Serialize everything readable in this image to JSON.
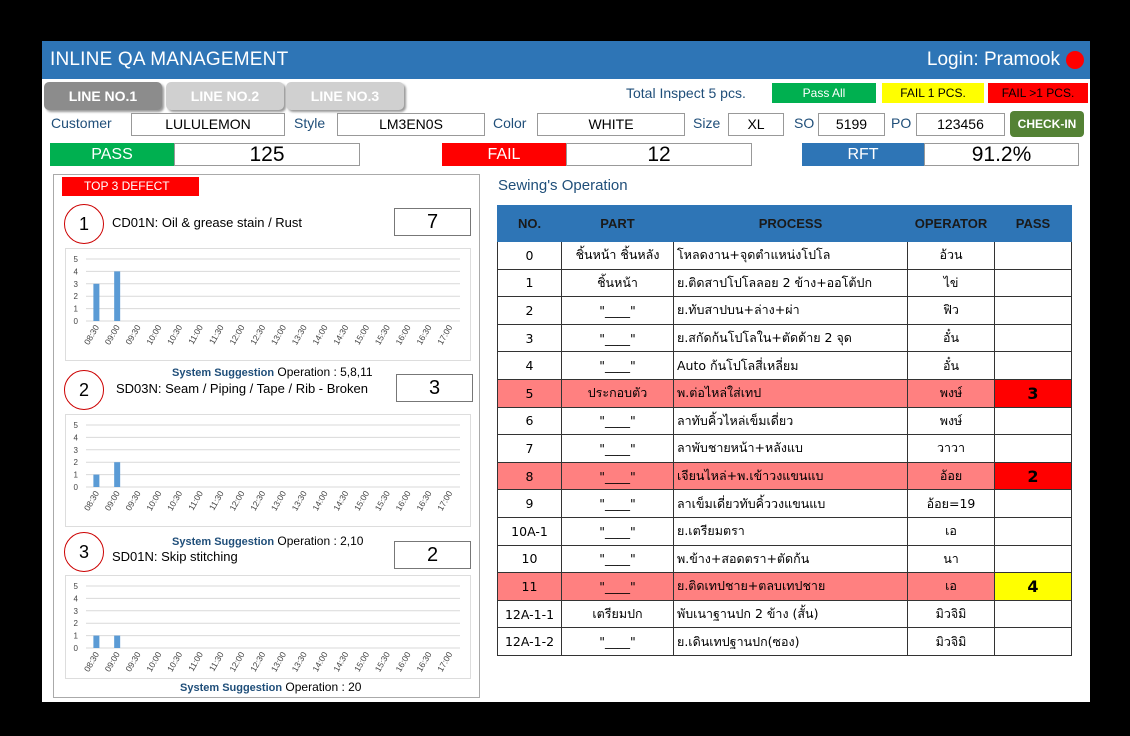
{
  "app": {
    "title": "INLINE QA MANAGEMENT",
    "login": "Login: Pramook"
  },
  "tabs": [
    {
      "label": "LINE NO.1"
    },
    {
      "label": "LINE NO.2"
    },
    {
      "label": "LINE NO.3"
    }
  ],
  "inspect": {
    "total": "Total Inspect 5 pcs."
  },
  "legend": {
    "pass_all": "Pass All",
    "fail_one": "FAIL 1 PCS.",
    "fail_more": "FAIL >1 PCS."
  },
  "fields": {
    "customer_label": "Customer",
    "customer": "LULULEMON",
    "style_label": "Style",
    "style": "LM3EN0S",
    "color_label": "Color",
    "color": "WHITE",
    "size_label": "Size",
    "size": "XL",
    "so_label": "SO",
    "so": "5199",
    "po_label": "PO",
    "po": "123456",
    "checkin": "CHECK-IN"
  },
  "kpi": {
    "pass_label": "PASS",
    "pass": "125",
    "fail_label": "FAIL",
    "fail": "12",
    "rft_label": "RFT",
    "rft": "91.2%"
  },
  "defects": {
    "header": "TOP 3 DEFECT",
    "suggestion_label": "System Suggestion",
    "items": [
      {
        "rank": "1",
        "name": "CD01N: Oil & grease stain / Rust",
        "count": "7",
        "operation": "Operation :  5,8,11"
      },
      {
        "rank": "2",
        "name": "SD03N: Seam / Piping / Tape / Rib - Broken",
        "count": "3",
        "operation": "Operation :  2,10"
      },
      {
        "rank": "3",
        "name": "SD01N: Skip stitching",
        "count": "2",
        "operation": "Operation :  20"
      }
    ]
  },
  "chart_data": [
    {
      "type": "bar",
      "categories": [
        "08:30",
        "09:00",
        "09:30",
        "10:00",
        "10:30",
        "11:00",
        "11:30",
        "12:00",
        "12:30",
        "13:00",
        "13:30",
        "14:00",
        "14:30",
        "15:00",
        "15:30",
        "16:00",
        "16:30",
        "17:00"
      ],
      "values": [
        3,
        4,
        0,
        0,
        0,
        0,
        0,
        0,
        0,
        0,
        0,
        0,
        0,
        0,
        0,
        0,
        0,
        0
      ],
      "ylim": [
        0,
        5
      ],
      "yticks": [
        "5",
        "4",
        "3",
        "2",
        "1",
        "0"
      ],
      "grid": true,
      "color": "#5b9bd5"
    },
    {
      "type": "bar",
      "categories": [
        "08:30",
        "09:00",
        "09:30",
        "10:00",
        "10:30",
        "11:00",
        "11:30",
        "12:00",
        "12:30",
        "13:00",
        "13:30",
        "14:00",
        "14:30",
        "15:00",
        "15:30",
        "16:00",
        "16:30",
        "17:00"
      ],
      "values": [
        1,
        2,
        0,
        0,
        0,
        0,
        0,
        0,
        0,
        0,
        0,
        0,
        0,
        0,
        0,
        0,
        0,
        0
      ],
      "ylim": [
        0,
        5
      ],
      "yticks": [
        "5",
        "4",
        "3",
        "2",
        "1",
        "0"
      ],
      "grid": true,
      "color": "#5b9bd5"
    },
    {
      "type": "bar",
      "categories": [
        "08:30",
        "09:00",
        "09:30",
        "10:00",
        "10:30",
        "11:00",
        "11:30",
        "12:00",
        "12:30",
        "13:00",
        "13:30",
        "14:00",
        "14:30",
        "15:00",
        "15:30",
        "16:00",
        "16:30",
        "17:00"
      ],
      "values": [
        1,
        1,
        0,
        0,
        0,
        0,
        0,
        0,
        0,
        0,
        0,
        0,
        0,
        0,
        0,
        0,
        0,
        0
      ],
      "ylim": [
        0,
        5
      ],
      "yticks": [
        "5",
        "4",
        "3",
        "2",
        "1",
        "0"
      ],
      "grid": true,
      "color": "#5b9bd5"
    }
  ],
  "operations": {
    "title": "Sewing's Operation",
    "headers": [
      "NO.",
      "PART",
      "PROCESS",
      "OPERATOR",
      "PASS"
    ],
    "rows": [
      {
        "no": "0",
        "part": "ชิ้นหน้า ชิ้นหลัง",
        "process": "โหลดงาน+จุดตำแหน่งโปโล",
        "operator": "อ้วน",
        "pass": "",
        "status": ""
      },
      {
        "no": "1",
        "part": "ชิ้นหน้า",
        "process": "ย.ติดสาปโปโลลอย 2 ข้าง+ออโต้ปก",
        "operator": "ไข่",
        "pass": "",
        "status": ""
      },
      {
        "no": "2",
        "part": "\"____\"",
        "process": "ย.ทับสาปบน+ล่าง+ผ่า",
        "operator": "ฟิว",
        "pass": "",
        "status": ""
      },
      {
        "no": "3",
        "part": "\"____\"",
        "process": "ย.สกัดก้นโปโลใน+ตัดด้าย 2 จุด",
        "operator": "อั๋น",
        "pass": "",
        "status": ""
      },
      {
        "no": "4",
        "part": "\"____\"",
        "process": "Auto ก้นโปโลสี่เหลี่ยม",
        "operator": "อั๋น",
        "pass": "",
        "status": ""
      },
      {
        "no": "5",
        "part": "ประกอบตัว",
        "process": "พ.ต่อไหล่ใส่เทป",
        "operator": "พงษ์",
        "pass": "3",
        "status": "fail-more"
      },
      {
        "no": "6",
        "part": "\"____\"",
        "process": "ลาทับคิ้วไหล่เข็มเดี่ยว",
        "operator": "พงษ์",
        "pass": "",
        "status": ""
      },
      {
        "no": "7",
        "part": "\"____\"",
        "process": "ลาพับชายหน้า+หลังแบ",
        "operator": "วาวา",
        "pass": "",
        "status": ""
      },
      {
        "no": "8",
        "part": "\"____\"",
        "process": "เจียนไหล่+พ.เข้าวงแขนแบ",
        "operator": "อ้อย",
        "pass": "2",
        "status": "fail-more"
      },
      {
        "no": "9",
        "part": "\"____\"",
        "process": "ลาเข็มเดี่ยวทับคิ้ววงแขนแบ",
        "operator": "อ้อย=19",
        "pass": "",
        "status": ""
      },
      {
        "no": "10A-1",
        "part": "\"____\"",
        "process": "ย.เตรียมตรา",
        "operator": "เอ",
        "pass": "",
        "status": ""
      },
      {
        "no": "10",
        "part": "\"____\"",
        "process": "พ.ข้าง+สอดตรา+ตัดก้น",
        "operator": "นา",
        "pass": "",
        "status": ""
      },
      {
        "no": "11",
        "part": "\"____\"",
        "process": "ย.ติดเทปชาย+ตลบเทปชาย",
        "operator": "เอ",
        "pass": "4",
        "status": "fail-one"
      },
      {
        "no": "12A-1-1",
        "part": "เตรียมปก",
        "process": "พับเนาฐานปก 2 ข้าง (สั้น)",
        "operator": "มิวจิมิ",
        "pass": "",
        "status": ""
      },
      {
        "no": "12A-1-2",
        "part": "\"____\"",
        "process": "ย.เดินเทปฐานปก(ซอง)",
        "operator": "มิวจิมิ",
        "pass": "",
        "status": ""
      }
    ]
  },
  "colors": {
    "header_blue": "#2e75b6",
    "pass_green": "#00b050",
    "fail_red": "#ff0000",
    "fail_one_yellow": "#ffff00",
    "row_fail_bg": "#ff8080",
    "checkin_green": "#548235"
  }
}
